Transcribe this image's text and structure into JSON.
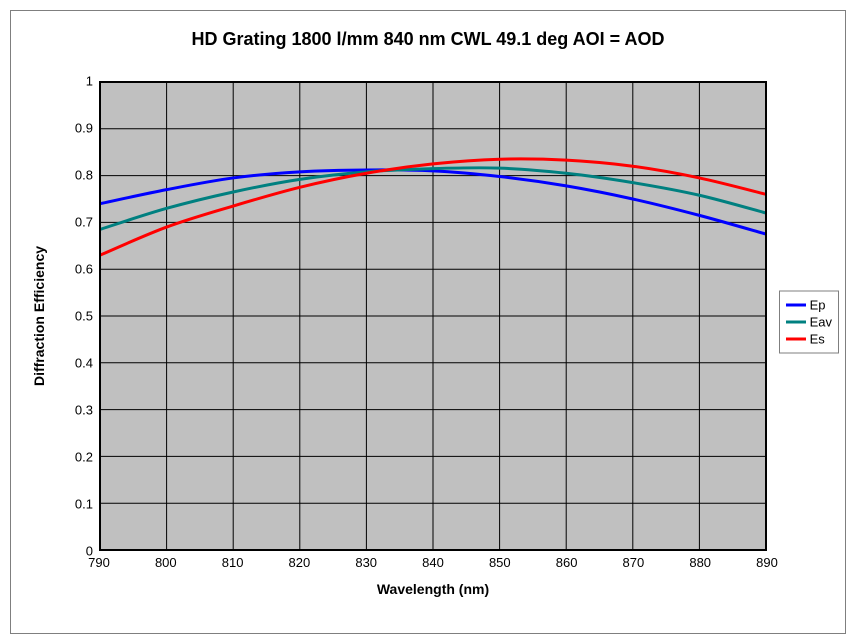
{
  "chart": {
    "type": "line",
    "title": "HD Grating 1800 l/mm 840 nm CWL 49.1 deg AOI = AOD",
    "title_fontsize": 18,
    "title_weight": "bold",
    "title_color": "#000000",
    "xlabel": "Wavelength (nm)",
    "ylabel": "Diffraction Efficiency",
    "label_fontsize": 14,
    "tick_fontsize": 13,
    "background_color": "#ffffff",
    "plot_background_color": "#c0c0c0",
    "grid_color": "#000000",
    "grid_width": 1,
    "border_color": "#000000",
    "outer_border_color": "#7f7f7f",
    "xlim": [
      790,
      890
    ],
    "ylim": [
      0,
      1
    ],
    "xticks": [
      790,
      800,
      810,
      820,
      830,
      840,
      850,
      860,
      870,
      880,
      890
    ],
    "yticks": [
      0,
      0.1,
      0.2,
      0.3,
      0.4,
      0.5,
      0.6,
      0.7,
      0.8,
      0.9,
      1
    ],
    "x_values": [
      790,
      800,
      810,
      820,
      830,
      840,
      850,
      860,
      870,
      880,
      890
    ],
    "series": [
      {
        "name": "Ep",
        "color": "#0000ff",
        "line_width": 3,
        "y_values": [
          0.74,
          0.77,
          0.795,
          0.808,
          0.812,
          0.81,
          0.798,
          0.778,
          0.75,
          0.715,
          0.675
        ]
      },
      {
        "name": "Eav",
        "color": "#008080",
        "line_width": 3,
        "y_values": [
          0.685,
          0.73,
          0.765,
          0.792,
          0.808,
          0.815,
          0.816,
          0.805,
          0.785,
          0.758,
          0.72
        ]
      },
      {
        "name": "Es",
        "color": "#ff0000",
        "line_width": 3,
        "y_values": [
          0.63,
          0.69,
          0.735,
          0.775,
          0.805,
          0.825,
          0.835,
          0.833,
          0.82,
          0.795,
          0.76
        ]
      }
    ],
    "legend": {
      "fontsize": 13,
      "border_color": "#7f7f7f",
      "background": "#ffffff"
    }
  }
}
